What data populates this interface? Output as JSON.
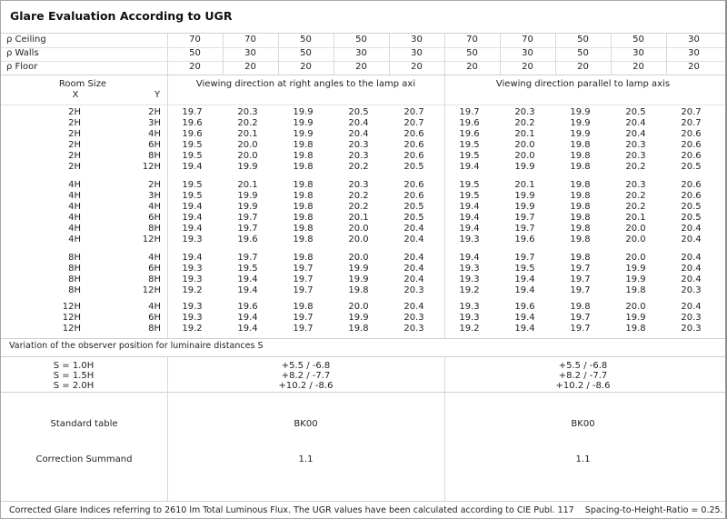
{
  "title": "Glare Evaluation According to UGR",
  "reflectances": [
    {
      "label": "ρ  Ceiling",
      "values": [
        "70",
        "70",
        "50",
        "50",
        "30",
        "70",
        "70",
        "50",
        "50",
        "30"
      ]
    },
    {
      "label": "ρ  Walls",
      "values": [
        "50",
        "30",
        "50",
        "30",
        "30",
        "50",
        "30",
        "50",
        "30",
        "30"
      ]
    },
    {
      "label": "ρ  Floor",
      "values": [
        "20",
        "20",
        "20",
        "20",
        "20",
        "20",
        "20",
        "20",
        "20",
        "20"
      ]
    }
  ],
  "header": {
    "room_size": "Room Size",
    "x": "X",
    "y": "Y",
    "right_angles": "Viewing direction at right angles to the lamp axi",
    "parallel": "Viewing direction parallel to lamp axis"
  },
  "groups": [
    {
      "rows": [
        {
          "x": "2H",
          "y": "2H",
          "values": [
            "19.7",
            "20.3",
            "19.9",
            "20.5",
            "20.7",
            "19.7",
            "20.3",
            "19.9",
            "20.5",
            "20.7"
          ]
        },
        {
          "x": "2H",
          "y": "3H",
          "values": [
            "19.6",
            "20.2",
            "19.9",
            "20.4",
            "20.7",
            "19.6",
            "20.2",
            "19.9",
            "20.4",
            "20.7"
          ]
        },
        {
          "x": "2H",
          "y": "4H",
          "values": [
            "19.6",
            "20.1",
            "19.9",
            "20.4",
            "20.6",
            "19.6",
            "20.1",
            "19.9",
            "20.4",
            "20.6"
          ]
        },
        {
          "x": "2H",
          "y": "6H",
          "values": [
            "19.5",
            "20.0",
            "19.8",
            "20.3",
            "20.6",
            "19.5",
            "20.0",
            "19.8",
            "20.3",
            "20.6"
          ]
        },
        {
          "x": "2H",
          "y": "8H",
          "values": [
            "19.5",
            "20.0",
            "19.8",
            "20.3",
            "20.6",
            "19.5",
            "20.0",
            "19.8",
            "20.3",
            "20.6"
          ]
        },
        {
          "x": "2H",
          "y": "12H",
          "values": [
            "19.4",
            "19.9",
            "19.8",
            "20.2",
            "20.5",
            "19.4",
            "19.9",
            "19.8",
            "20.2",
            "20.5"
          ]
        }
      ]
    },
    {
      "rows": [
        {
          "x": "4H",
          "y": "2H",
          "values": [
            "19.5",
            "20.1",
            "19.8",
            "20.3",
            "20.6",
            "19.5",
            "20.1",
            "19.8",
            "20.3",
            "20.6"
          ]
        },
        {
          "x": "4H",
          "y": "3H",
          "values": [
            "19.5",
            "19.9",
            "19.8",
            "20.2",
            "20.6",
            "19.5",
            "19.9",
            "19.8",
            "20.2",
            "20.6"
          ]
        },
        {
          "x": "4H",
          "y": "4H",
          "values": [
            "19.4",
            "19.9",
            "19.8",
            "20.2",
            "20.5",
            "19.4",
            "19.9",
            "19.8",
            "20.2",
            "20.5"
          ]
        },
        {
          "x": "4H",
          "y": "6H",
          "values": [
            "19.4",
            "19.7",
            "19.8",
            "20.1",
            "20.5",
            "19.4",
            "19.7",
            "19.8",
            "20.1",
            "20.5"
          ]
        },
        {
          "x": "4H",
          "y": "8H",
          "values": [
            "19.4",
            "19.7",
            "19.8",
            "20.0",
            "20.4",
            "19.4",
            "19.7",
            "19.8",
            "20.0",
            "20.4"
          ]
        },
        {
          "x": "4H",
          "y": "12H",
          "values": [
            "19.3",
            "19.6",
            "19.8",
            "20.0",
            "20.4",
            "19.3",
            "19.6",
            "19.8",
            "20.0",
            "20.4"
          ]
        }
      ]
    },
    {
      "rows": [
        {
          "x": "8H",
          "y": "4H",
          "values": [
            "19.4",
            "19.7",
            "19.8",
            "20.0",
            "20.4",
            "19.4",
            "19.7",
            "19.8",
            "20.0",
            "20.4"
          ]
        },
        {
          "x": "8H",
          "y": "6H",
          "values": [
            "19.3",
            "19.5",
            "19.7",
            "19.9",
            "20.4",
            "19.3",
            "19.5",
            "19.7",
            "19.9",
            "20.4"
          ]
        },
        {
          "x": "8H",
          "y": "8H",
          "values": [
            "19.3",
            "19.4",
            "19.7",
            "19.9",
            "20.4",
            "19.3",
            "19.4",
            "19.7",
            "19.9",
            "20.4"
          ]
        },
        {
          "x": "8H",
          "y": "12H",
          "values": [
            "19.2",
            "19.4",
            "19.7",
            "19.8",
            "20.3",
            "19.2",
            "19.4",
            "19.7",
            "19.8",
            "20.3"
          ]
        }
      ]
    },
    {
      "rows": [
        {
          "x": "12H",
          "y": "4H",
          "values": [
            "19.3",
            "19.6",
            "19.8",
            "20.0",
            "20.4",
            "19.3",
            "19.6",
            "19.8",
            "20.0",
            "20.4"
          ]
        },
        {
          "x": "12H",
          "y": "6H",
          "values": [
            "19.3",
            "19.4",
            "19.7",
            "19.9",
            "20.3",
            "19.3",
            "19.4",
            "19.7",
            "19.9",
            "20.3"
          ]
        },
        {
          "x": "12H",
          "y": "8H",
          "values": [
            "19.2",
            "19.4",
            "19.7",
            "19.8",
            "20.3",
            "19.2",
            "19.4",
            "19.7",
            "19.8",
            "20.3"
          ]
        }
      ]
    }
  ],
  "variation": {
    "label": "Variation of the observer position for luminaire distances S",
    "distances": [
      "S = 1.0H",
      "S = 1.5H",
      "S = 2.0H"
    ],
    "right_angles": [
      "+5.5 / -6.8",
      "+8.2 / -7.7",
      "+10.2 / -8.6"
    ],
    "parallel": [
      "+5.5 / -6.8",
      "+8.2 / -7.7",
      "+10.2 / -8.6"
    ]
  },
  "standard_table": {
    "label": "Standard table",
    "right_angles": "BK00",
    "parallel": "BK00"
  },
  "correction_summand": {
    "label": "Correction Summand",
    "right_angles": "1.1",
    "parallel": "1.1"
  },
  "footer": "Corrected Glare Indices referring to 2610 lm Total Luminous Flux. The UGR values have been calculated according to CIE Publ. 117    Spacing-to-Height-Ratio = 0.25."
}
